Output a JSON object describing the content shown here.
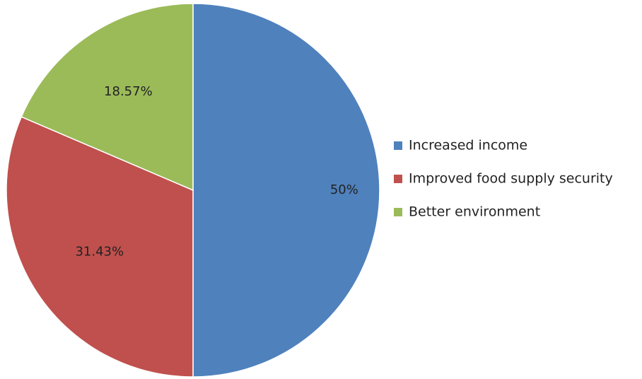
{
  "chart_data": {
    "type": "pie",
    "categories": [
      "Increased income",
      "Improved food supply security",
      "Better environment"
    ],
    "values": [
      50,
      31.43,
      18.57
    ],
    "data_labels": [
      "50%",
      "31.43%",
      "18.57%"
    ],
    "colors": [
      "#4f81bd",
      "#c0504d",
      "#9bbb59"
    ],
    "legend_position": "right",
    "start": "top",
    "direction": "clockwise"
  }
}
